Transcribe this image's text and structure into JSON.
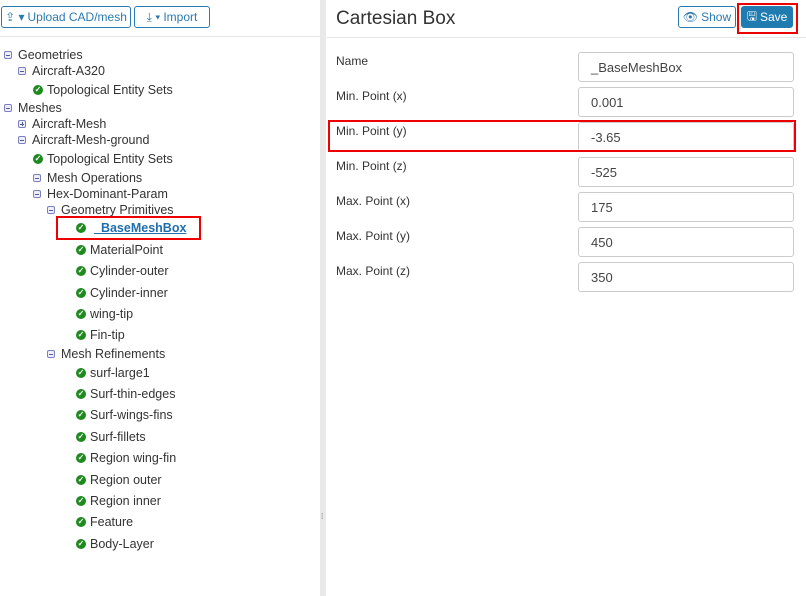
{
  "toolbar": {
    "upload_label": "Upload CAD/mesh",
    "import_label": "Import"
  },
  "tree": [
    {
      "label": "Geometries",
      "type": "minus",
      "level": 0
    },
    {
      "label": "Aircraft-A320",
      "type": "minus",
      "level": 1
    },
    {
      "label": "Topological Entity Sets",
      "type": "check",
      "level": 2
    },
    {
      "label": "Meshes",
      "type": "minus",
      "level": 0
    },
    {
      "label": "Aircraft-Mesh",
      "type": "plus",
      "level": 1
    },
    {
      "label": "Aircraft-Mesh-ground",
      "type": "minus",
      "level": 1
    },
    {
      "label": "Topological Entity Sets",
      "type": "check",
      "level": 2
    },
    {
      "label": "Mesh Operations",
      "type": "minus",
      "level": 2
    },
    {
      "label": "Hex-Dominant-Param",
      "type": "minus",
      "level": 3
    },
    {
      "label": "Geometry Primitives",
      "type": "minus",
      "level": 4
    },
    {
      "label": "_BaseMeshBox",
      "type": "check",
      "level": 5,
      "selected": true
    },
    {
      "label": "MaterialPoint",
      "type": "check",
      "level": 5
    },
    {
      "label": "Cylinder-outer",
      "type": "check",
      "level": 5
    },
    {
      "label": "Cylinder-inner",
      "type": "check",
      "level": 5
    },
    {
      "label": "wing-tip",
      "type": "check",
      "level": 5
    },
    {
      "label": "Fin-tip",
      "type": "check",
      "level": 5
    },
    {
      "label": "Mesh Refinements",
      "type": "minus",
      "level": 4
    },
    {
      "label": "surf-large1",
      "type": "check",
      "level": 5
    },
    {
      "label": "Surf-thin-edges",
      "type": "check",
      "level": 5
    },
    {
      "label": "Surf-wings-fins",
      "type": "check",
      "level": 5
    },
    {
      "label": "Surf-fillets",
      "type": "check",
      "level": 5
    },
    {
      "label": "Region wing-fin",
      "type": "check",
      "level": 5
    },
    {
      "label": "Region outer",
      "type": "check",
      "level": 5
    },
    {
      "label": "Region inner",
      "type": "check",
      "level": 5
    },
    {
      "label": "Feature",
      "type": "check",
      "level": 5
    },
    {
      "label": "Body-Layer",
      "type": "check",
      "level": 5
    }
  ],
  "panel": {
    "title": "Cartesian Box",
    "show_label": "Show",
    "save_label": "Save"
  },
  "fields": [
    {
      "label": "Name",
      "value": "_BaseMeshBox"
    },
    {
      "label": "Min. Point (x)",
      "value": "0.001"
    },
    {
      "label": "Min. Point (y)",
      "value": "-3.65"
    },
    {
      "label": "Min. Point (z)",
      "value": "-525"
    },
    {
      "label": "Max. Point (x)",
      "value": "175"
    },
    {
      "label": "Max. Point (y)",
      "value": "450"
    },
    {
      "label": "Max. Point (z)",
      "value": "350"
    }
  ],
  "colors": {
    "accent": "#1f7bb0",
    "check": "#1e8a1e",
    "highlight": "#e00000"
  }
}
